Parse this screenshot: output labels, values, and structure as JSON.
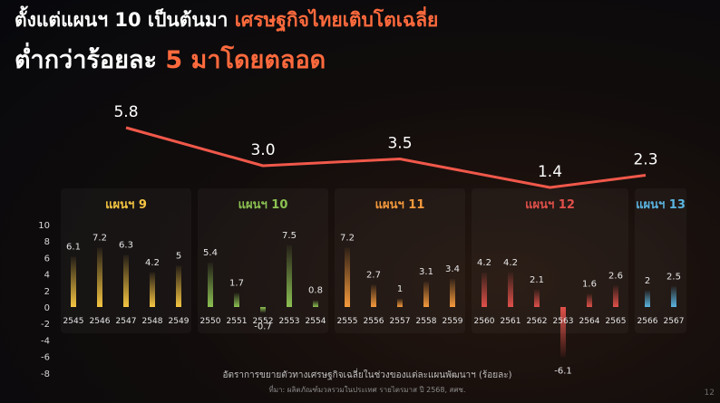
{
  "title": {
    "line1_a": "ตั้งแต่แผนฯ 10 เป็นต้นมา",
    "line1_b": "เศรษฐกิจไทยเติบโตเฉลี่ย",
    "line2_a": "ต่ำกว่าร้อยละ",
    "line2_b": "5 มาโดยตลอด"
  },
  "page_number": "12",
  "colors": {
    "plan9": "#f5c542",
    "plan10": "#8cc152",
    "plan11": "#f59a3c",
    "plan12": "#e0504a",
    "plan13": "#5ab4e0",
    "average_line": "#f0584a"
  },
  "chart_data": [
    {
      "type": "line",
      "title": "",
      "categories": [
        "แผนฯ 9",
        "แผนฯ 10",
        "แผนฯ 11",
        "แผนฯ 12",
        "แผนฯ 13"
      ],
      "values": [
        5.8,
        3.0,
        3.5,
        1.4,
        2.3
      ],
      "value_labels": [
        "5.8",
        "3.0",
        "3.5",
        "1.4",
        "2.3"
      ]
    },
    {
      "type": "bar",
      "xlabel": "อัตราการขยายตัวทางเศรษฐกิจเฉลี่ยในช่วงของแต่ละแผนพัฒนาฯ (ร้อยละ)",
      "source": "ที่มา: ผลิตภัณฑ์มวลรวมในประเทศ รายไตรมาส ปี 2568, สศช.",
      "ylim": [
        -8,
        10
      ],
      "yticks": [
        "10",
        "8",
        "6",
        "4",
        "2",
        "0",
        "-2",
        "-4",
        "-6",
        "-8"
      ],
      "ytick_values": [
        10,
        8,
        6,
        4,
        2,
        0,
        -2,
        -4,
        -6,
        -8
      ],
      "grid": false,
      "groups": [
        {
          "name": "แผนฯ 9",
          "color": "#f5c542",
          "years": [
            "2545",
            "2546",
            "2547",
            "2548",
            "2549"
          ],
          "values": [
            6.1,
            7.2,
            6.3,
            4.2,
            5
          ],
          "labels": [
            "6.1",
            "7.2",
            "6.3",
            "4.2",
            "5"
          ]
        },
        {
          "name": "แผนฯ 10",
          "color": "#8cc152",
          "years": [
            "2550",
            "2551",
            "2552",
            "2553",
            "2554"
          ],
          "values": [
            5.4,
            1.7,
            -0.7,
            7.5,
            0.8
          ],
          "labels": [
            "5.4",
            "1.7",
            "-0.7",
            "7.5",
            "0.8"
          ]
        },
        {
          "name": "แผนฯ 11",
          "color": "#f59a3c",
          "years": [
            "2555",
            "2556",
            "2557",
            "2558",
            "2559"
          ],
          "values": [
            7.2,
            2.7,
            1,
            3.1,
            3.4
          ],
          "labels": [
            "7.2",
            "2.7",
            "1",
            "3.1",
            "3.4"
          ]
        },
        {
          "name": "แผนฯ 12",
          "color": "#e0504a",
          "years": [
            "2560",
            "2561",
            "2562",
            "2563",
            "2564",
            "2565"
          ],
          "values": [
            4.2,
            4.2,
            2.1,
            -6.1,
            1.6,
            2.6
          ],
          "labels": [
            "4.2",
            "4.2",
            "2.1",
            "-6.1",
            "1.6",
            "2.6"
          ]
        },
        {
          "name": "แผนฯ 13",
          "color": "#5ab4e0",
          "years": [
            "2566",
            "2567"
          ],
          "values": [
            2,
            2.5
          ],
          "labels": [
            "2",
            "2.5"
          ]
        }
      ]
    }
  ]
}
